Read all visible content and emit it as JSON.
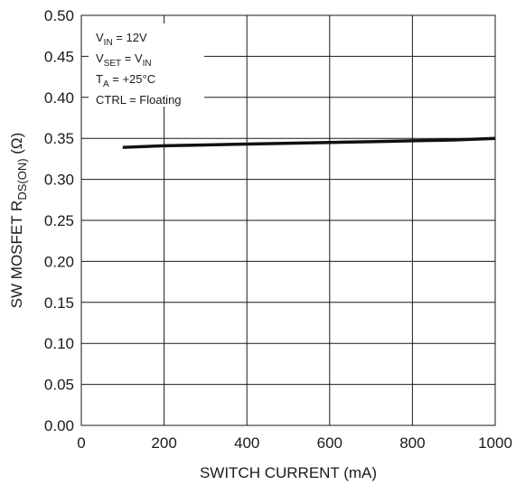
{
  "chart_data": {
    "type": "line",
    "title": "",
    "xlabel": "SWITCH CURRENT (mA)",
    "ylabel": {
      "main": "SW MOSFET R",
      "sub": "DS(ON)",
      "unit": " (Ω)"
    },
    "xlim": [
      0,
      1000
    ],
    "ylim": [
      0,
      0.5
    ],
    "x_ticks": [
      "0",
      "200",
      "400",
      "600",
      "800",
      "1000"
    ],
    "y_ticks": [
      "0.00",
      "0.05",
      "0.10",
      "0.15",
      "0.20",
      "0.25",
      "0.30",
      "0.35",
      "0.40",
      "0.45",
      "0.50"
    ],
    "grid": true,
    "series": [
      {
        "name": "",
        "color": "#111111",
        "x": [
          100,
          200,
          300,
          400,
          500,
          600,
          700,
          800,
          900,
          1000
        ],
        "y": [
          0.339,
          0.341,
          0.342,
          0.343,
          0.344,
          0.345,
          0.346,
          0.347,
          0.348,
          0.35
        ]
      }
    ],
    "conditions": [
      {
        "main": "V",
        "sub": "IN",
        "rest": " = 12V",
        "sub2": ""
      },
      {
        "main": "V",
        "sub": "SET",
        "rest": " = V",
        "sub2": "IN"
      },
      {
        "main": "T",
        "sub": "A",
        "rest": " = +25°C",
        "sub2": ""
      },
      {
        "main": "CTRL = Floating",
        "sub": "",
        "rest": "",
        "sub2": ""
      }
    ]
  }
}
